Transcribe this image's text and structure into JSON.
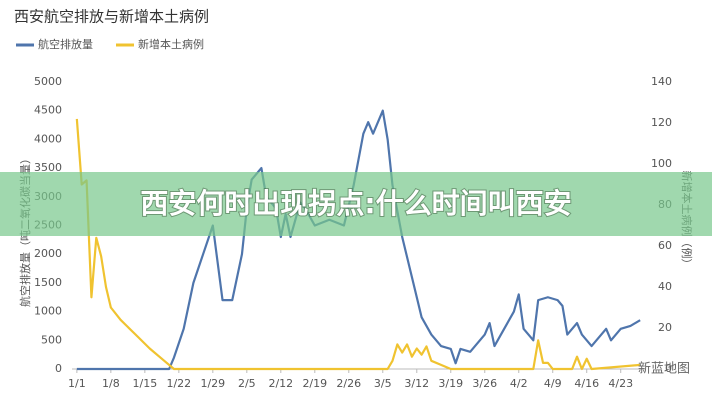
{
  "chart_data": {
    "type": "line",
    "title": "西安航空排放与新增本土病例",
    "ylabel": "航空排放量（吨二氧化碳当量）",
    "y2label": "新增本土病例（例）",
    "xlim": [
      -1,
      117
    ],
    "xticks": [
      {
        "value": 0,
        "label": "1/1"
      },
      {
        "value": 7,
        "label": "1/8"
      },
      {
        "value": 14,
        "label": "1/15"
      },
      {
        "value": 21,
        "label": "1/22"
      },
      {
        "value": 28,
        "label": "1/29"
      },
      {
        "value": 35,
        "label": "2/5"
      },
      {
        "value": 42,
        "label": "2/12"
      },
      {
        "value": 49,
        "label": "2/19"
      },
      {
        "value": 56,
        "label": "2/26"
      },
      {
        "value": 63,
        "label": "3/5"
      },
      {
        "value": 70,
        "label": "3/12"
      },
      {
        "value": 77,
        "label": "3/19"
      },
      {
        "value": 84,
        "label": "3/26"
      },
      {
        "value": 91,
        "label": "4/2"
      },
      {
        "value": 98,
        "label": "4/9"
      },
      {
        "value": 105,
        "label": "4/16"
      },
      {
        "value": 112,
        "label": "4/23"
      }
    ],
    "ylim": [
      0,
      5000
    ],
    "yticks": [
      0,
      500,
      1000,
      1500,
      2000,
      2500,
      3000,
      3500,
      4000,
      4500,
      5000
    ],
    "y2lim": [
      0,
      140
    ],
    "y2ticks": [
      0,
      20,
      40,
      60,
      80,
      100,
      120,
      140
    ],
    "series": [
      {
        "name": "航空排放量",
        "color": "#4f75ac",
        "x": [
          0,
          18,
          19,
          20,
          22,
          24,
          26,
          28,
          30,
          32,
          34,
          35,
          36,
          38,
          39,
          41,
          42,
          43,
          44,
          46,
          47,
          49,
          52,
          55,
          57,
          59,
          60,
          61,
          63,
          64,
          65,
          67,
          69,
          71,
          73,
          75,
          77,
          78,
          79,
          81,
          83,
          84,
          85,
          86,
          88,
          90,
          91,
          92,
          94,
          95,
          97,
          99,
          100,
          101,
          103,
          104,
          106,
          107,
          109,
          110,
          112,
          114,
          116
        ],
        "values": [
          0,
          0,
          0,
          200,
          700,
          1500,
          2000,
          2500,
          1200,
          1200,
          2000,
          2800,
          3300,
          3500,
          3000,
          2800,
          2300,
          2700,
          2300,
          2900,
          2800,
          2500,
          2600,
          2500,
          3200,
          4100,
          4300,
          4100,
          4500,
          4000,
          3200,
          2300,
          1600,
          900,
          600,
          400,
          350,
          100,
          350,
          300,
          500,
          600,
          800,
          400,
          700,
          1000,
          1300,
          700,
          500,
          1200,
          1250,
          1200,
          1100,
          600,
          800,
          600,
          400,
          500,
          700,
          500,
          700,
          750,
          850
        ]
      },
      {
        "name": "新增本土病例",
        "color": "#f0c330",
        "axis": "y2",
        "x": [
          0,
          1,
          2,
          3,
          4,
          5,
          6,
          7,
          9,
          12,
          15,
          18,
          20,
          64,
          65,
          66,
          67,
          68,
          69,
          70,
          71,
          72,
          73,
          75,
          77,
          92,
          94,
          95,
          96,
          97,
          98,
          102,
          103,
          104,
          105,
          106,
          116
        ],
        "values": [
          122,
          90,
          92,
          35,
          64,
          55,
          40,
          30,
          24,
          17,
          10,
          4,
          0,
          0,
          4,
          12,
          8,
          12,
          6,
          10,
          7,
          11,
          4,
          2,
          0,
          0,
          0,
          14,
          3,
          3,
          0,
          0,
          6,
          0,
          5,
          0,
          2
        ]
      }
    ],
    "banner": "西安何时出现拐点:什么时间叫西安",
    "watermark": "新蓝地图"
  }
}
